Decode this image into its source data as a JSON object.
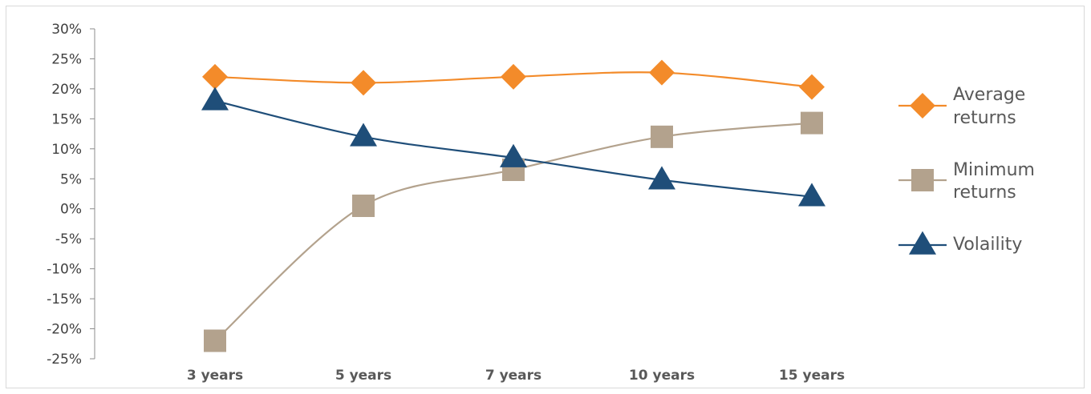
{
  "chart_data": {
    "type": "line",
    "categories": [
      "3 years",
      "5 years",
      "7 years",
      "10 years",
      "15 years"
    ],
    "y_tick_labels": [
      "30%",
      "25%",
      "20%",
      "15%",
      "10%",
      "5%",
      "0%",
      "-5%",
      "-10%",
      "-15%",
      "-20%",
      "-25%"
    ],
    "ylim": [
      -25,
      30
    ],
    "y_step": 5,
    "grid": false,
    "legend_position": "right",
    "series": [
      {
        "name": "Average returns",
        "legend_lines": [
          "Average",
          "returns"
        ],
        "values": [
          22,
          21,
          22,
          22.7,
          20.3
        ],
        "color": "#f38b2a",
        "marker": "diamond"
      },
      {
        "name": "Minimum returns",
        "legend_lines": [
          "Minimum",
          "returns"
        ],
        "values": [
          -22,
          0.5,
          6.5,
          12,
          14.3
        ],
        "color": "#b3a28d",
        "marker": "square"
      },
      {
        "name": "Volaility",
        "legend_lines": [
          "Volaility"
        ],
        "values": [
          18,
          12,
          8.5,
          4.8,
          2
        ],
        "color": "#1f4e79",
        "marker": "triangle"
      }
    ]
  }
}
